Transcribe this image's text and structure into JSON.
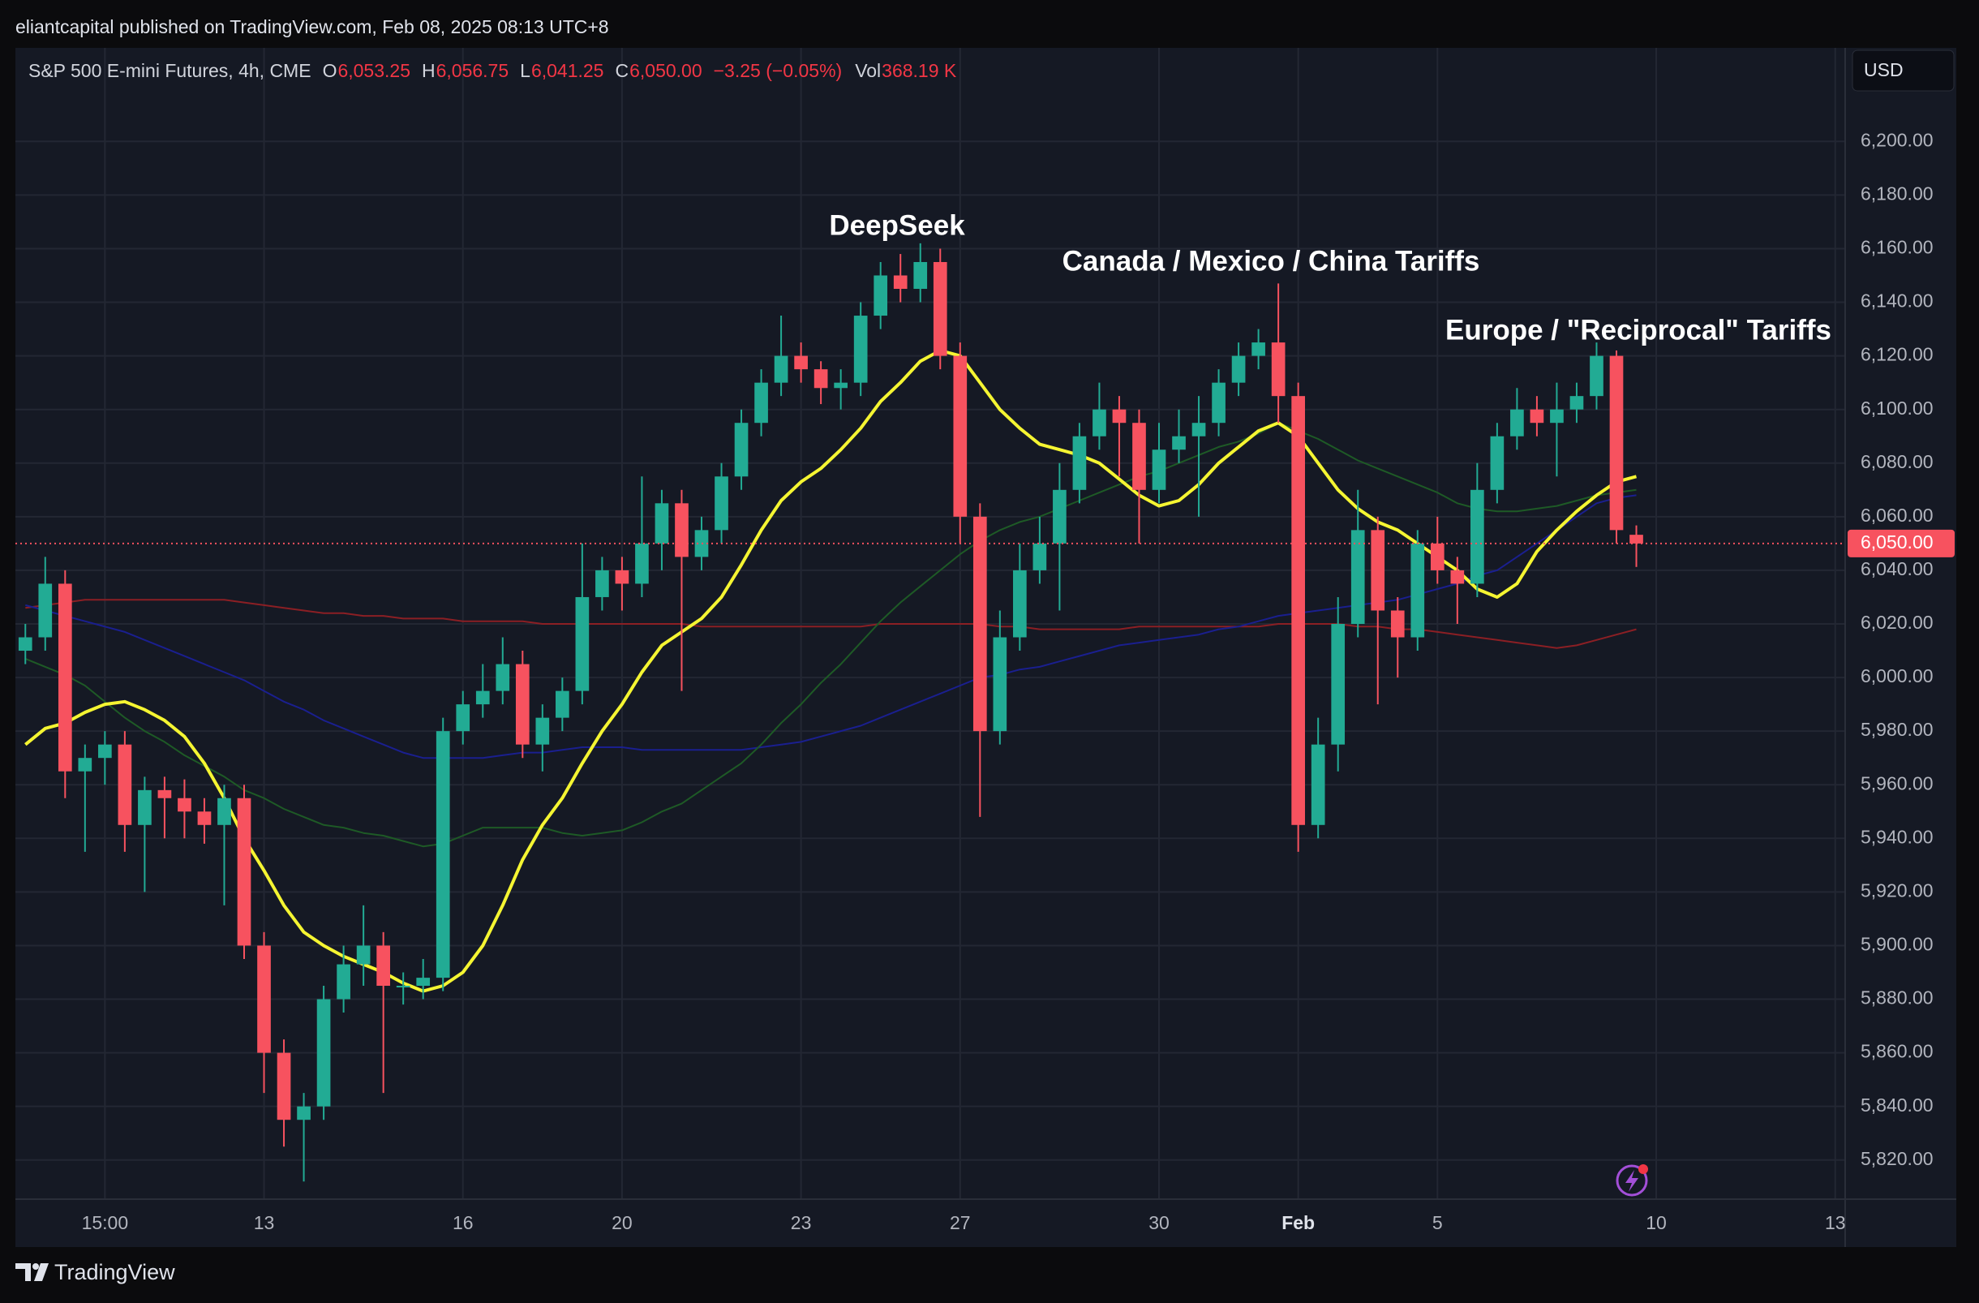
{
  "banner": "eliantcapital published on TradingView.com, Feb 08, 2025 08:13 UTC+8",
  "currency": "USD",
  "footer": "TradingView",
  "chart_data": {
    "type": "candlestick",
    "title": "S&P 500 E-mini Futures, 4h, CME",
    "header_values": [
      {
        "label": "O",
        "value": "6,053.25"
      },
      {
        "label": "H",
        "value": "6,056.75"
      },
      {
        "label": "L",
        "value": "6,041.25"
      },
      {
        "label": "C",
        "value": "6,050.00"
      }
    ],
    "change": "−3.25 (−0.05%)",
    "volume": {
      "label": "Vol",
      "value": "368.19 K"
    },
    "annotations": [
      "DeepSeek",
      "Canada / Mexico / China Tariffs",
      "Europe / \"Reciprocal\" Tariffs"
    ],
    "last_price": {
      "value": 6050,
      "label": "6,050.00",
      "color": "#f7525f"
    },
    "up_color": "#22ab94",
    "down_color": "#f7525f",
    "grid": true,
    "categories": [
      null,
      null,
      null,
      null,
      "15:00",
      null,
      null,
      null,
      null,
      null,
      null,
      null,
      "13",
      null,
      null,
      null,
      null,
      null,
      null,
      null,
      null,
      null,
      "16",
      null,
      null,
      null,
      null,
      null,
      null,
      null,
      "20",
      null,
      null,
      null,
      null,
      null,
      null,
      null,
      null,
      "23",
      null,
      null,
      null,
      null,
      null,
      null,
      null,
      "27",
      null,
      null,
      null,
      null,
      null,
      null,
      null,
      null,
      null,
      "30",
      null,
      null,
      null,
      null,
      null,
      null,
      "Feb",
      null,
      null,
      null,
      null,
      null,
      null,
      "5",
      null,
      null,
      null,
      null,
      null,
      null,
      null,
      null,
      null,
      null,
      "10",
      null,
      null,
      null,
      null,
      null,
      null,
      null,
      null,
      "13"
    ],
    "open": [
      6010,
      6015,
      6035,
      5965,
      5970,
      5975,
      5945,
      5958,
      5955,
      5950,
      5945,
      5955,
      5900,
      5860,
      5835,
      5840,
      5880,
      5893,
      5900,
      5885,
      5885,
      5888,
      5980,
      5990,
      5995,
      6005,
      5975,
      5985,
      5995,
      6030,
      6040,
      6035,
      6050,
      6065,
      6045,
      6055,
      6075,
      6095,
      6110,
      6120,
      6115,
      6108,
      6110,
      6135,
      6150,
      6145,
      6155,
      6120,
      6060,
      5980,
      6015,
      6040,
      6050,
      6070,
      6090,
      6100,
      6095,
      6070,
      6085,
      6090,
      6095,
      6110,
      6120,
      6125,
      6105,
      5945,
      5975,
      6020,
      6055,
      6025,
      6015,
      6050,
      6040,
      6035,
      6070,
      6090,
      6100,
      6095,
      6100,
      6105,
      6120,
      6053.25,
      null,
      null,
      null,
      null,
      null,
      null,
      null,
      null,
      null,
      null
    ],
    "high": [
      6020,
      6045,
      6040,
      5975,
      5980,
      5980,
      5963,
      5963,
      5962,
      5955,
      5960,
      5960,
      5905,
      5865,
      5845,
      5885,
      5900,
      5915,
      5905,
      5890,
      5895,
      5985,
      5995,
      6005,
      6015,
      6010,
      5990,
      6000,
      6050,
      6045,
      6045,
      6075,
      6070,
      6070,
      6060,
      6080,
      6100,
      6115,
      6135,
      6125,
      6118,
      6115,
      6140,
      6155,
      6158,
      6162,
      6160,
      6125,
      6065,
      6025,
      6050,
      6060,
      6080,
      6095,
      6110,
      6105,
      6100,
      6095,
      6100,
      6105,
      6115,
      6125,
      6130,
      6147,
      6110,
      5985,
      6030,
      6070,
      6060,
      6030,
      6055,
      6060,
      6045,
      6080,
      6095,
      6108,
      6105,
      6110,
      6110,
      6125,
      6122,
      6056.75,
      null,
      null,
      null,
      null,
      null,
      null,
      null,
      null,
      null,
      null
    ],
    "low": [
      6005,
      6010,
      5955,
      5935,
      5960,
      5935,
      5920,
      5940,
      5940,
      5938,
      5915,
      5895,
      5845,
      5825,
      5812,
      5835,
      5875,
      5885,
      5845,
      5878,
      5880,
      5883,
      5975,
      5985,
      5990,
      5970,
      5965,
      5980,
      5990,
      6025,
      6025,
      6030,
      6040,
      5995,
      6040,
      6050,
      6070,
      6090,
      6105,
      6110,
      6102,
      6100,
      6105,
      6130,
      6140,
      6140,
      6115,
      6050,
      5948,
      5975,
      6010,
      6035,
      6025,
      6065,
      6085,
      6075,
      6050,
      6065,
      6080,
      6060,
      6090,
      6105,
      6115,
      6095,
      5935,
      5940,
      5965,
      6015,
      5990,
      6000,
      6010,
      6035,
      6020,
      6030,
      6065,
      6085,
      6090,
      6075,
      6095,
      6100,
      6050,
      6041.25,
      null,
      null,
      null,
      null,
      null,
      null,
      null,
      null,
      null,
      null
    ],
    "close": [
      6015,
      6035,
      5965,
      5970,
      5975,
      5945,
      5958,
      5955,
      5950,
      5945,
      5955,
      5900,
      5860,
      5835,
      5840,
      5880,
      5893,
      5900,
      5885,
      5885,
      5888,
      5980,
      5990,
      5995,
      6005,
      5975,
      5985,
      5995,
      6030,
      6040,
      6035,
      6050,
      6065,
      6045,
      6055,
      6075,
      6095,
      6110,
      6120,
      6115,
      6108,
      6110,
      6135,
      6150,
      6145,
      6155,
      6120,
      6060,
      5980,
      6015,
      6040,
      6050,
      6070,
      6090,
      6100,
      6095,
      6070,
      6085,
      6090,
      6095,
      6110,
      6120,
      6125,
      6105,
      5945,
      5975,
      6020,
      6055,
      6025,
      6015,
      6050,
      6040,
      6035,
      6070,
      6090,
      6100,
      6095,
      6100,
      6105,
      6120,
      6055,
      6050,
      null,
      null,
      null,
      null,
      null,
      null,
      null,
      null,
      null,
      null
    ],
    "lines": [
      {
        "color": "#8b1f24",
        "width": 2,
        "values": [
          6026,
          6027,
          6028,
          6029,
          6029,
          6029,
          6029,
          6029,
          6029,
          6029,
          6029,
          6028,
          6027,
          6026,
          6025,
          6024,
          6024,
          6023,
          6023,
          6022,
          6022,
          6022,
          6021,
          6021,
          6021,
          6021,
          6020,
          6020,
          6020,
          6020,
          6020,
          6020,
          6020,
          6020,
          6019,
          6019,
          6019,
          6019,
          6019,
          6019,
          6019,
          6019,
          6019,
          6020,
          6020,
          6020,
          6020,
          6020,
          6020,
          6019,
          6019,
          6018,
          6018,
          6018,
          6018,
          6018,
          6019,
          6019,
          6019,
          6019,
          6019,
          6019,
          6019,
          6020,
          6020,
          6020,
          6020,
          6019,
          6019,
          6018,
          6018,
          6017,
          6016,
          6015,
          6014,
          6013,
          6012,
          6011,
          6012,
          6014,
          6016,
          6018,
          null,
          null,
          null,
          null,
          null,
          null,
          null,
          null,
          null,
          null
        ]
      },
      {
        "color": "#1a1f8f",
        "width": 2,
        "values": [
          6027,
          6025,
          6023,
          6021,
          6019,
          6017,
          6014,
          6011,
          6008,
          6005,
          6002,
          5999,
          5995,
          5991,
          5988,
          5984,
          5981,
          5978,
          5975,
          5972,
          5970,
          5970,
          5970,
          5970,
          5971,
          5972,
          5972,
          5973,
          5974,
          5974,
          5974,
          5973,
          5973,
          5973,
          5973,
          5973,
          5973,
          5974,
          5975,
          5976,
          5978,
          5980,
          5982,
          5985,
          5988,
          5991,
          5994,
          5997,
          6000,
          6001,
          6003,
          6004,
          6006,
          6008,
          6010,
          6012,
          6013,
          6014,
          6015,
          6016,
          6018,
          6019,
          6021,
          6023,
          6024,
          6025,
          6026,
          6027,
          6028,
          6029,
          6031,
          6033,
          6035,
          6038,
          6040,
          6045,
          6050,
          6055,
          6060,
          6065,
          6067,
          6068,
          null,
          null,
          null,
          null,
          null,
          null,
          null,
          null,
          null,
          null
        ]
      },
      {
        "color": "#1e5a26",
        "width": 2,
        "values": [
          6007,
          6004,
          6001,
          5997,
          5991,
          5985,
          5980,
          5976,
          5971,
          5967,
          5963,
          5958,
          5955,
          5951,
          5948,
          5945,
          5944,
          5942,
          5941,
          5939,
          5937,
          5938,
          5941,
          5944,
          5944,
          5944,
          5944,
          5942,
          5941,
          5942,
          5943,
          5946,
          5950,
          5953,
          5958,
          5963,
          5968,
          5975,
          5983,
          5990,
          5998,
          6005,
          6013,
          6021,
          6028,
          6034,
          6040,
          6046,
          6051,
          6055,
          6058,
          6060,
          6063,
          6066,
          6069,
          6072,
          6075,
          6077,
          6080,
          6083,
          6086,
          6088,
          6091,
          6095,
          6092,
          6089,
          6085,
          6081,
          6078,
          6075,
          6072,
          6069,
          6065,
          6063,
          6062,
          6062,
          6063,
          6064,
          6066,
          6068,
          6069,
          6070,
          null,
          null,
          null,
          null,
          null,
          null,
          null,
          null,
          null,
          null
        ]
      },
      {
        "color": "#f5f532",
        "width": 4,
        "values": [
          5975,
          5981,
          5983,
          5987,
          5990,
          5991,
          5988,
          5984,
          5978,
          5968,
          5955,
          5940,
          5928,
          5915,
          5905,
          5900,
          5896,
          5893,
          5890,
          5886,
          5883,
          5885,
          5890,
          5900,
          5915,
          5932,
          5945,
          5955,
          5968,
          5980,
          5990,
          6002,
          6012,
          6017,
          6022,
          6030,
          6042,
          6055,
          6066,
          6073,
          6078,
          6085,
          6093,
          6103,
          6110,
          6118,
          6122,
          6120,
          6110,
          6100,
          6093,
          6087,
          6085,
          6083,
          6080,
          6074,
          6068,
          6064,
          6066,
          6072,
          6080,
          6086,
          6092,
          6095,
          6090,
          6080,
          6070,
          6063,
          6058,
          6055,
          6050,
          6045,
          6040,
          6033,
          6030,
          6035,
          6047,
          6055,
          6062,
          6068,
          6073,
          6075,
          null,
          null,
          null,
          null,
          null,
          null,
          null,
          null,
          null,
          null
        ]
      }
    ],
    "ylim": [
      5805.4,
      6234.9
    ],
    "yticks": [
      {
        "value": 5820,
        "label": "5,820.00"
      },
      {
        "value": 5840,
        "label": "5,840.00"
      },
      {
        "value": 5860,
        "label": "5,860.00"
      },
      {
        "value": 5880,
        "label": "5,880.00"
      },
      {
        "value": 5900,
        "label": "5,900.00"
      },
      {
        "value": 5920,
        "label": "5,920.00"
      },
      {
        "value": 5940,
        "label": "5,940.00"
      },
      {
        "value": 5960,
        "label": "5,960.00"
      },
      {
        "value": 5980,
        "label": "5,980.00"
      },
      {
        "value": 6000,
        "label": "6,000.00"
      },
      {
        "value": 6020,
        "label": "6,020.00"
      },
      {
        "value": 6040,
        "label": "6,040.00"
      },
      {
        "value": 6060,
        "label": "6,060.00"
      },
      {
        "value": 6080,
        "label": "6,080.00"
      },
      {
        "value": 6100,
        "label": "6,100.00"
      },
      {
        "value": 6120,
        "label": "6,120.00"
      },
      {
        "value": 6140,
        "label": "6,140.00"
      },
      {
        "value": 6160,
        "label": "6,160.00"
      },
      {
        "value": 6180,
        "label": "6,180.00"
      },
      {
        "value": 6200,
        "label": "6,200.00"
      }
    ]
  }
}
